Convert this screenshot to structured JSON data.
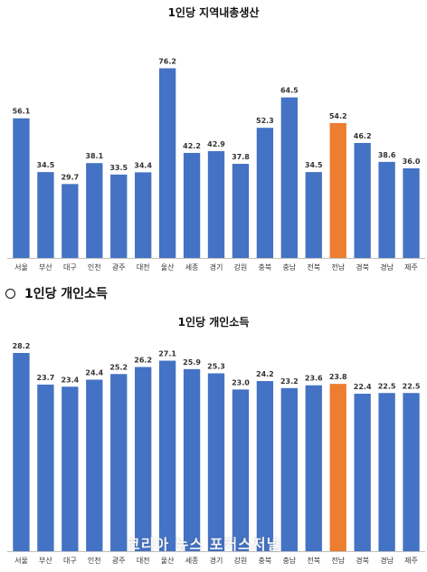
{
  "colors": {
    "bar": "#4472c4",
    "highlight": "#ed7d31",
    "axis": "#bfbfbf"
  },
  "section_header": {
    "bullet_icon": "circle-bullet-icon",
    "text": "1인당 개인소득"
  },
  "watermark": "코리아 뉴스 포커스저널",
  "chart_data": [
    {
      "type": "bar",
      "title": "1인당 지역내총생산",
      "categories": [
        "서울",
        "부산",
        "대구",
        "인천",
        "광주",
        "대전",
        "울산",
        "세종",
        "경기",
        "강원",
        "충북",
        "충남",
        "전북",
        "전남",
        "경북",
        "경남",
        "제주"
      ],
      "values": [
        56.1,
        34.5,
        29.7,
        38.1,
        33.5,
        34.4,
        76.2,
        42.2,
        42.9,
        37.8,
        52.3,
        64.5,
        34.5,
        54.2,
        46.2,
        38.6,
        36.0
      ],
      "value_labels": [
        "56.1",
        "34.5",
        "29.7",
        "38.1",
        "33.5",
        "34.4",
        "76.2",
        "42.2",
        "42.9",
        "37.8",
        "52.3",
        "64.5",
        "34.5",
        "54.2",
        "46.2",
        "38.6",
        "36.0"
      ],
      "highlight_category": "전남",
      "xlabel": "",
      "ylabel": "",
      "ylim": [
        0,
        80
      ],
      "grid": false,
      "legend": "none"
    },
    {
      "type": "bar",
      "title": "1인당 개인소득",
      "categories": [
        "서울",
        "부산",
        "대구",
        "인천",
        "광주",
        "대전",
        "울산",
        "세종",
        "경기",
        "강원",
        "충북",
        "충남",
        "전북",
        "전남",
        "경북",
        "경남",
        "제주"
      ],
      "values": [
        28.2,
        23.7,
        23.4,
        24.4,
        25.2,
        26.2,
        27.1,
        25.9,
        25.3,
        23.0,
        24.2,
        23.2,
        23.6,
        23.8,
        22.4,
        22.5,
        22.5
      ],
      "value_labels": [
        "28.2",
        "23.7",
        "23.4",
        "24.4",
        "25.2",
        "26.2",
        "27.1",
        "25.9",
        "25.3",
        "23.0",
        "24.2",
        "23.2",
        "23.6",
        "23.8",
        "22.4",
        "22.5",
        "22.5"
      ],
      "highlight_category": "전남",
      "xlabel": "",
      "ylabel": "",
      "ylim": [
        0,
        30
      ],
      "grid": false,
      "legend": "none"
    }
  ]
}
